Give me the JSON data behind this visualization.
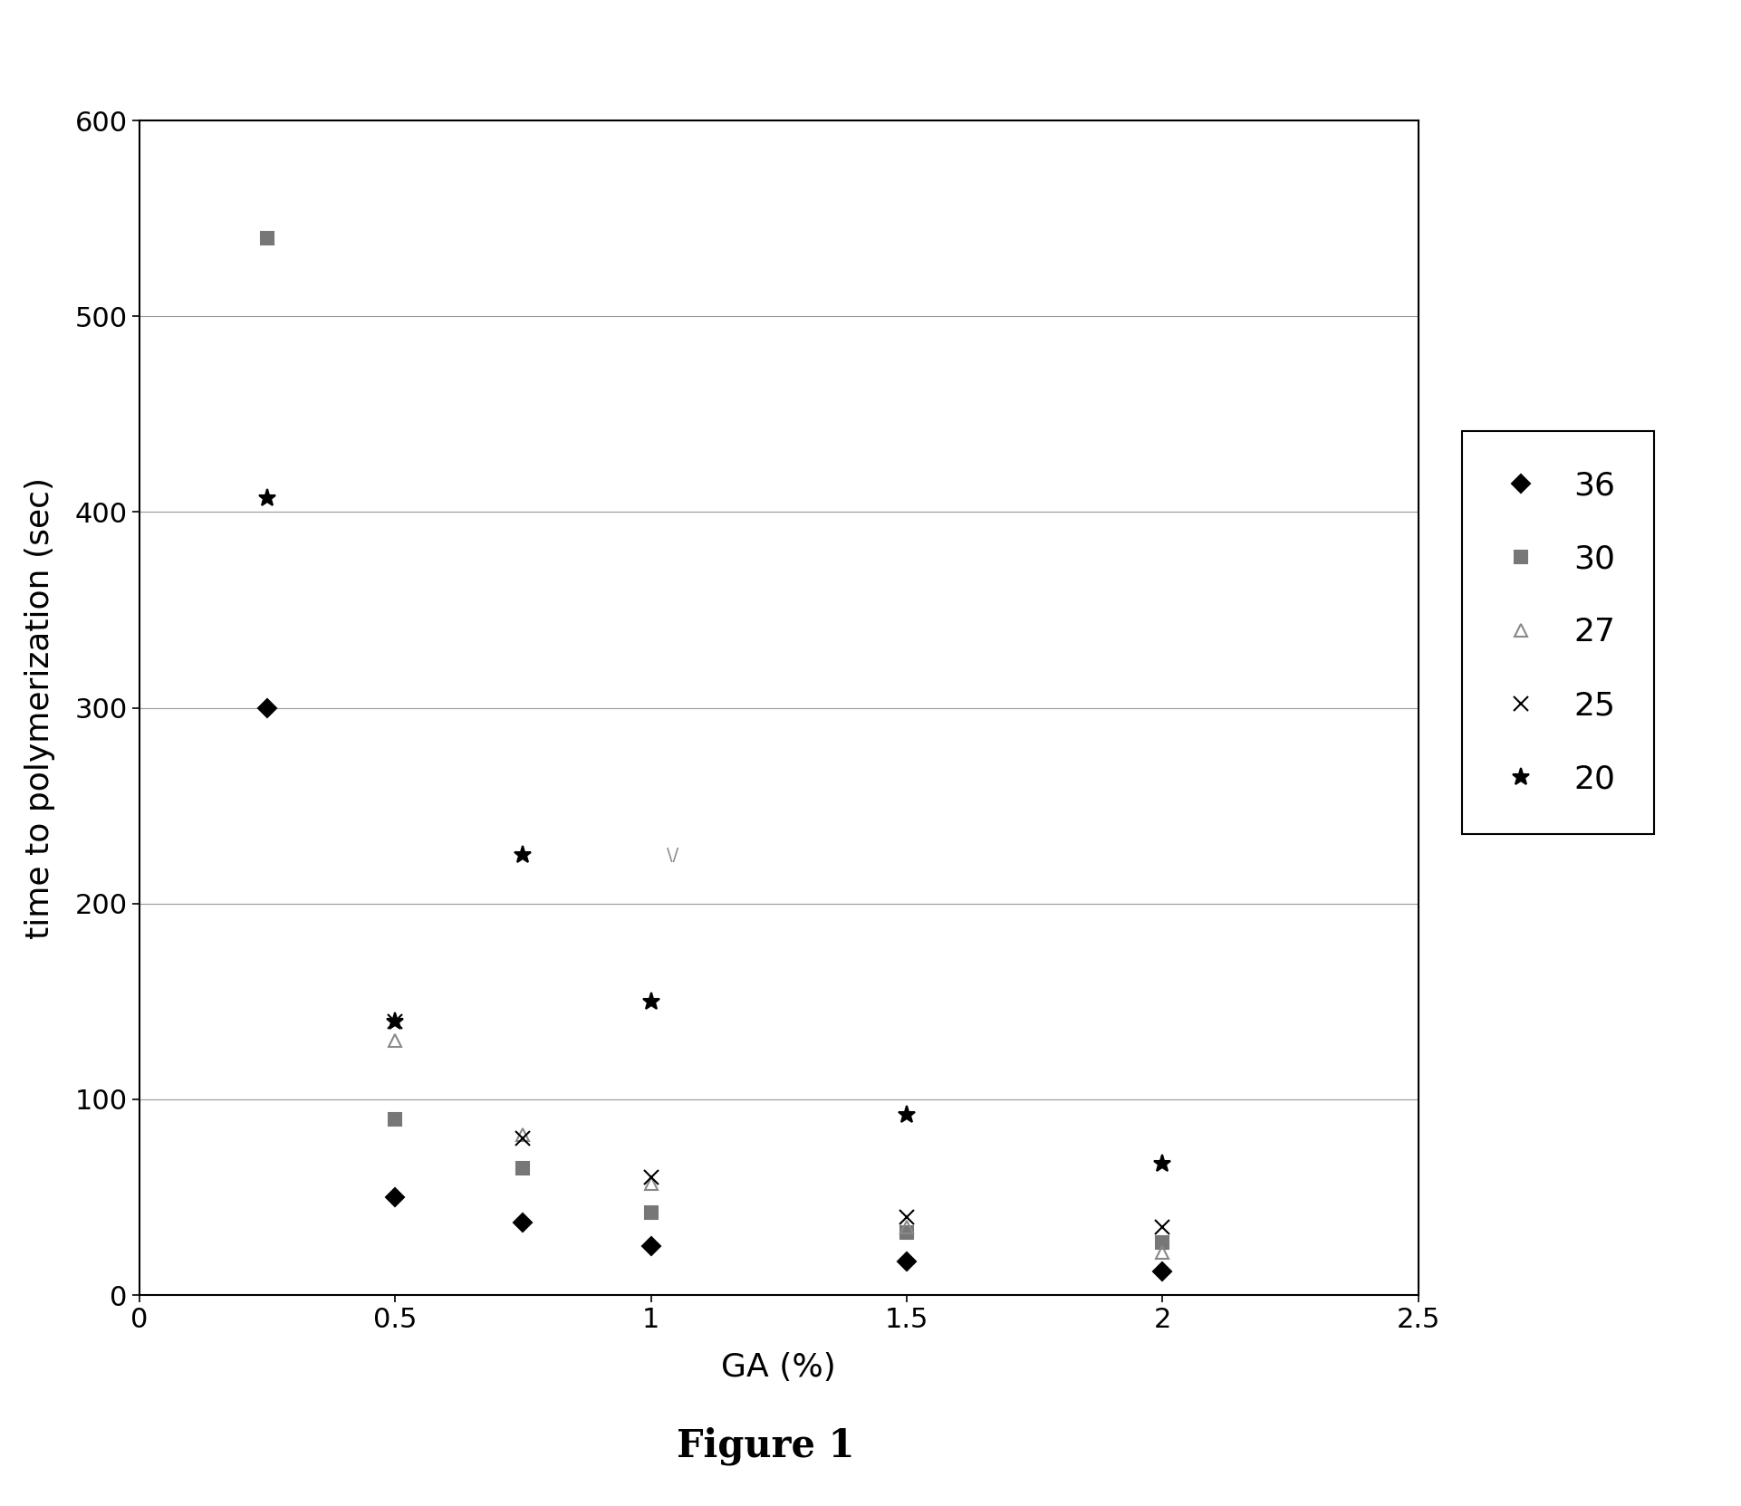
{
  "title": "Figure 1",
  "xlabel": "GA (%)",
  "ylabel": "time to polymerization (sec)",
  "xlim": [
    0,
    2.5
  ],
  "ylim": [
    0,
    600
  ],
  "xticks": [
    0.0,
    0.5,
    1.0,
    1.5,
    2.0,
    2.5
  ],
  "yticks": [
    0,
    100,
    200,
    300,
    400,
    500,
    600
  ],
  "series": [
    {
      "key": "36",
      "x": [
        0.25,
        0.5,
        0.75,
        1.0,
        1.5,
        2.0
      ],
      "y": [
        300,
        50,
        37,
        25,
        17,
        12
      ],
      "marker": "D",
      "color": "#000000",
      "mfc": "#000000",
      "markersize": 10,
      "label": "36"
    },
    {
      "key": "30",
      "x": [
        0.25,
        0.5,
        0.75,
        1.0,
        1.5,
        2.0
      ],
      "y": [
        540,
        90,
        65,
        42,
        32,
        27
      ],
      "marker": "s",
      "color": "#777777",
      "mfc": "#777777",
      "markersize": 10,
      "label": "30"
    },
    {
      "key": "27",
      "x": [
        0.5,
        0.75,
        1.0,
        1.5,
        2.0
      ],
      "y": [
        130,
        82,
        57,
        35,
        22
      ],
      "marker": "^",
      "color": "#888888",
      "mfc": "none",
      "markersize": 10,
      "label": "27"
    },
    {
      "key": "25",
      "x": [
        0.5,
        0.75,
        1.0,
        1.5,
        2.0
      ],
      "y": [
        140,
        80,
        60,
        40,
        35
      ],
      "marker": "x",
      "color": "#000000",
      "mfc": "#000000",
      "markersize": 11,
      "label": "25"
    },
    {
      "key": "20",
      "x": [
        0.25,
        0.5,
        0.75,
        1.0,
        1.5,
        2.0
      ],
      "y": [
        407,
        140,
        225,
        150,
        92,
        67
      ],
      "marker": "*",
      "color": "#000000",
      "mfc": "#000000",
      "markersize": 14,
      "label": "20"
    }
  ],
  "background_color": "#ffffff",
  "grid_color": "#999999",
  "figsize": [
    19.22,
    16.63
  ],
  "dpi": 100
}
